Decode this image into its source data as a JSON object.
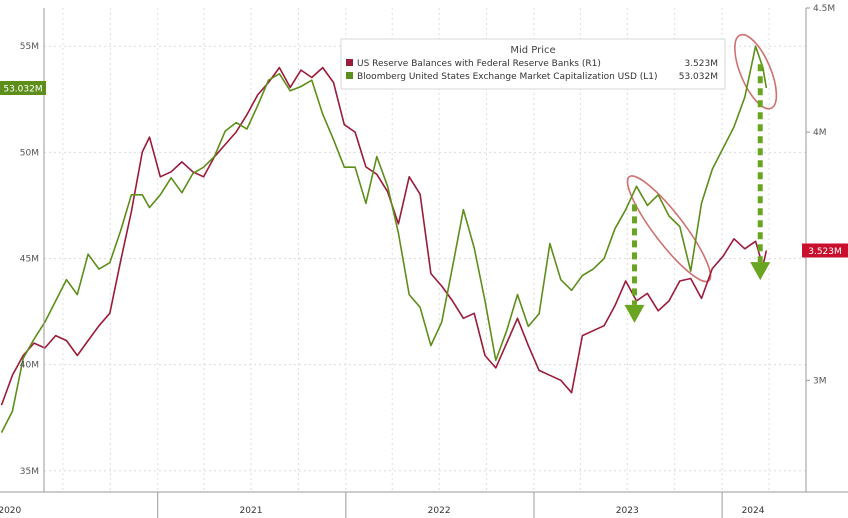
{
  "chart_data": {
    "type": "line",
    "title": "",
    "grid": true,
    "legend_placement": "top-right",
    "legend": {
      "header": "Mid Price",
      "items": [
        {
          "swatch_color": "#9b1b3a",
          "label": "US Reserve Balances with Federal Reserve Banks  (R1)",
          "value": "3.523M"
        },
        {
          "swatch_color": "#5e8e1a",
          "label": "Bloomberg United States Exchange Market Capitalization USD  (L1)",
          "value": "53.032M"
        }
      ]
    },
    "x_axis": {
      "type": "date",
      "range": [
        "2020-03",
        "2024-03"
      ],
      "ticks": [
        "2020",
        "2021",
        "2022",
        "2023",
        "2024"
      ]
    },
    "left_axis": {
      "range": [
        34,
        56.8
      ],
      "ticks": [
        "35M",
        "40M",
        "45M",
        "50M",
        "55M"
      ],
      "tick_values": [
        35,
        40,
        45,
        50,
        55
      ],
      "last_value_tag": {
        "text": "53.032M",
        "value": 53.032,
        "color": "#5e8e1a"
      }
    },
    "right_axis": {
      "range": [
        2.55,
        4.5
      ],
      "ticks": [
        "3M",
        "4M",
        "4.5M"
      ],
      "tick_values": [
        3,
        4,
        4.5
      ],
      "last_value_tag": {
        "text": "3.523M",
        "value": 3.523,
        "color": "#c8102e"
      }
    },
    "series": [
      {
        "axis": "right",
        "color": "#9b1b3a",
        "points": [
          [
            "2020-03-04",
            2.9
          ],
          [
            "2020-03-25",
            3.02
          ],
          [
            "2020-04-15",
            3.1
          ],
          [
            "2020-05-06",
            3.15
          ],
          [
            "2020-05-27",
            3.13
          ],
          [
            "2020-06-17",
            3.18
          ],
          [
            "2020-07-08",
            3.16
          ],
          [
            "2020-07-29",
            3.1
          ],
          [
            "2020-08-19",
            3.16
          ],
          [
            "2020-09-09",
            3.22
          ],
          [
            "2020-09-30",
            3.27
          ],
          [
            "2020-10-21",
            3.48
          ],
          [
            "2020-11-11",
            3.68
          ],
          [
            "2020-12-02",
            3.92
          ],
          [
            "2020-12-16",
            3.98
          ],
          [
            "2021-01-06",
            3.82
          ],
          [
            "2021-01-27",
            3.84
          ],
          [
            "2021-02-17",
            3.88
          ],
          [
            "2021-03-10",
            3.84
          ],
          [
            "2021-03-31",
            3.82
          ],
          [
            "2021-04-21",
            3.9
          ],
          [
            "2021-05-12",
            3.95
          ],
          [
            "2021-06-02",
            4.0
          ],
          [
            "2021-06-23",
            4.07
          ],
          [
            "2021-07-14",
            4.15
          ],
          [
            "2021-08-04",
            4.2
          ],
          [
            "2021-08-25",
            4.26
          ],
          [
            "2021-09-15",
            4.18
          ],
          [
            "2021-10-06",
            4.25
          ],
          [
            "2021-10-27",
            4.22
          ],
          [
            "2021-11-17",
            4.26
          ],
          [
            "2021-12-08",
            4.2
          ],
          [
            "2021-12-29",
            4.03
          ],
          [
            "2022-01-19",
            4.0
          ],
          [
            "2022-02-09",
            3.86
          ],
          [
            "2022-03-02",
            3.83
          ],
          [
            "2022-03-23",
            3.76
          ],
          [
            "2022-04-13",
            3.63
          ],
          [
            "2022-05-04",
            3.82
          ],
          [
            "2022-05-25",
            3.75
          ],
          [
            "2022-06-15",
            3.43
          ],
          [
            "2022-07-06",
            3.38
          ],
          [
            "2022-07-27",
            3.32
          ],
          [
            "2022-08-17",
            3.25
          ],
          [
            "2022-09-07",
            3.27
          ],
          [
            "2022-09-28",
            3.1
          ],
          [
            "2022-10-19",
            3.05
          ],
          [
            "2022-11-09",
            3.15
          ],
          [
            "2022-11-30",
            3.25
          ],
          [
            "2022-12-21",
            3.14
          ],
          [
            "2023-01-11",
            3.04
          ],
          [
            "2023-02-01",
            3.02
          ],
          [
            "2023-02-22",
            3.0
          ],
          [
            "2023-03-15",
            2.95
          ],
          [
            "2023-04-05",
            3.18
          ],
          [
            "2023-04-26",
            3.2
          ],
          [
            "2023-05-17",
            3.22
          ],
          [
            "2023-06-07",
            3.3
          ],
          [
            "2023-06-28",
            3.4
          ],
          [
            "2023-07-19",
            3.32
          ],
          [
            "2023-08-09",
            3.35
          ],
          [
            "2023-08-30",
            3.28
          ],
          [
            "2023-09-20",
            3.32
          ],
          [
            "2023-10-11",
            3.4
          ],
          [
            "2023-11-01",
            3.41
          ],
          [
            "2023-11-22",
            3.33
          ],
          [
            "2023-12-13",
            3.45
          ],
          [
            "2024-01-03",
            3.5
          ],
          [
            "2024-01-24",
            3.57
          ],
          [
            "2024-02-14",
            3.53
          ],
          [
            "2024-03-06",
            3.56
          ],
          [
            "2024-03-20",
            3.46
          ],
          [
            "2024-03-27",
            3.523
          ]
        ]
      },
      {
        "axis": "left",
        "color": "#5e8e1a",
        "points": [
          [
            "2020-03-04",
            36.8
          ],
          [
            "2020-03-25",
            37.8
          ],
          [
            "2020-04-15",
            40.3
          ],
          [
            "2020-05-06",
            41.2
          ],
          [
            "2020-05-27",
            42.0
          ],
          [
            "2020-06-17",
            43.0
          ],
          [
            "2020-07-08",
            44.0
          ],
          [
            "2020-07-29",
            43.3
          ],
          [
            "2020-08-19",
            45.2
          ],
          [
            "2020-09-09",
            44.5
          ],
          [
            "2020-09-30",
            44.8
          ],
          [
            "2020-10-21",
            46.3
          ],
          [
            "2020-11-11",
            48.0
          ],
          [
            "2020-12-02",
            48.0
          ],
          [
            "2020-12-16",
            47.4
          ],
          [
            "2021-01-06",
            48.0
          ],
          [
            "2021-01-27",
            48.8
          ],
          [
            "2021-02-17",
            48.1
          ],
          [
            "2021-03-10",
            49.0
          ],
          [
            "2021-03-31",
            49.3
          ],
          [
            "2021-04-21",
            49.8
          ],
          [
            "2021-05-12",
            51.0
          ],
          [
            "2021-06-02",
            51.4
          ],
          [
            "2021-06-23",
            51.1
          ],
          [
            "2021-07-14",
            52.2
          ],
          [
            "2021-08-04",
            53.4
          ],
          [
            "2021-08-25",
            53.7
          ],
          [
            "2021-09-15",
            52.9
          ],
          [
            "2021-10-06",
            53.1
          ],
          [
            "2021-10-27",
            53.4
          ],
          [
            "2021-11-17",
            51.8
          ],
          [
            "2021-12-08",
            50.6
          ],
          [
            "2021-12-29",
            49.3
          ],
          [
            "2022-01-19",
            49.3
          ],
          [
            "2022-02-09",
            47.6
          ],
          [
            "2022-03-02",
            49.8
          ],
          [
            "2022-03-23",
            48.4
          ],
          [
            "2022-04-13",
            46.2
          ],
          [
            "2022-05-04",
            43.3
          ],
          [
            "2022-05-25",
            42.7
          ],
          [
            "2022-06-15",
            40.9
          ],
          [
            "2022-07-06",
            42.0
          ],
          [
            "2022-07-27",
            44.6
          ],
          [
            "2022-08-17",
            47.3
          ],
          [
            "2022-09-07",
            45.5
          ],
          [
            "2022-09-28",
            43.0
          ],
          [
            "2022-10-19",
            40.2
          ],
          [
            "2022-11-09",
            41.6
          ],
          [
            "2022-11-30",
            43.3
          ],
          [
            "2022-12-21",
            41.8
          ],
          [
            "2023-01-11",
            42.4
          ],
          [
            "2023-02-01",
            45.7
          ],
          [
            "2023-02-22",
            44.0
          ],
          [
            "2023-03-15",
            43.5
          ],
          [
            "2023-04-05",
            44.2
          ],
          [
            "2023-04-26",
            44.5
          ],
          [
            "2023-05-17",
            45.0
          ],
          [
            "2023-06-07",
            46.4
          ],
          [
            "2023-06-28",
            47.3
          ],
          [
            "2023-07-19",
            48.4
          ],
          [
            "2023-08-09",
            47.5
          ],
          [
            "2023-08-30",
            48.0
          ],
          [
            "2023-09-20",
            47.0
          ],
          [
            "2023-10-11",
            46.5
          ],
          [
            "2023-11-01",
            44.4
          ],
          [
            "2023-11-22",
            47.6
          ],
          [
            "2023-12-13",
            49.2
          ],
          [
            "2024-01-03",
            50.2
          ],
          [
            "2024-01-24",
            51.2
          ],
          [
            "2024-02-14",
            52.6
          ],
          [
            "2024-03-06",
            55.0
          ],
          [
            "2024-03-20",
            54.0
          ],
          [
            "2024-03-27",
            53.032
          ]
        ]
      }
    ],
    "annotations": [
      {
        "type": "ellipse",
        "color": "#d07070",
        "around": "Bloomberg United States Exchange Market Capitalization USD",
        "from": "2023-07",
        "to": "2023-11"
      },
      {
        "type": "ellipse",
        "color": "#d07070",
        "around": "Bloomberg United States Exchange Market Capitalization USD",
        "from": "2024-02",
        "to": "2024-03"
      },
      {
        "type": "dashed-arrow",
        "color": "#6aa521",
        "date": "2023-07",
        "from_value": 48.4,
        "to_series": "US Reserve Balances with Federal Reserve Banks"
      },
      {
        "type": "dashed-arrow",
        "color": "#6aa521",
        "date": "2024-03",
        "from_value": 55.0,
        "to_series": "US Reserve Balances with Federal Reserve Banks"
      }
    ]
  }
}
